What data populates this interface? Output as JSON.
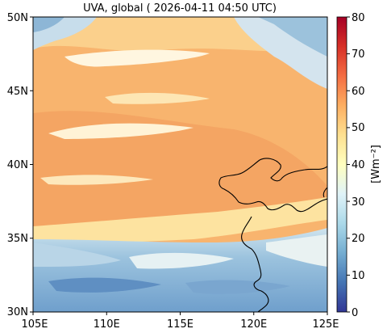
{
  "map": {
    "title": "UVA, global ( 2026-04-11 04:50 UTC)",
    "lon_range": [
      105,
      125
    ],
    "lat_range": [
      30,
      50
    ],
    "x_ticks": [
      "105E",
      "110E",
      "115E",
      "120E",
      "125E"
    ],
    "y_ticks": [
      "30N",
      "35N",
      "40N",
      "45N",
      "50N"
    ]
  },
  "colorbar": {
    "label": "[Wm⁻²]",
    "ticks": [
      "0",
      "10",
      "20",
      "30",
      "40",
      "50",
      "60",
      "70",
      "80"
    ],
    "range": [
      0,
      80
    ],
    "colormap": "RdYlBu_r",
    "colors": [
      "#313695",
      "#4575b4",
      "#74add1",
      "#abd9e9",
      "#e0f3f8",
      "#ffffbf",
      "#fee090",
      "#fdae61",
      "#f46d43",
      "#d73027",
      "#a50026"
    ]
  },
  "legend_colors": {
    "warm_field": "#f9b36d",
    "bright_band": "#fde3a0",
    "cool_field": "#8fb8d8",
    "coastline": "#000000"
  }
}
